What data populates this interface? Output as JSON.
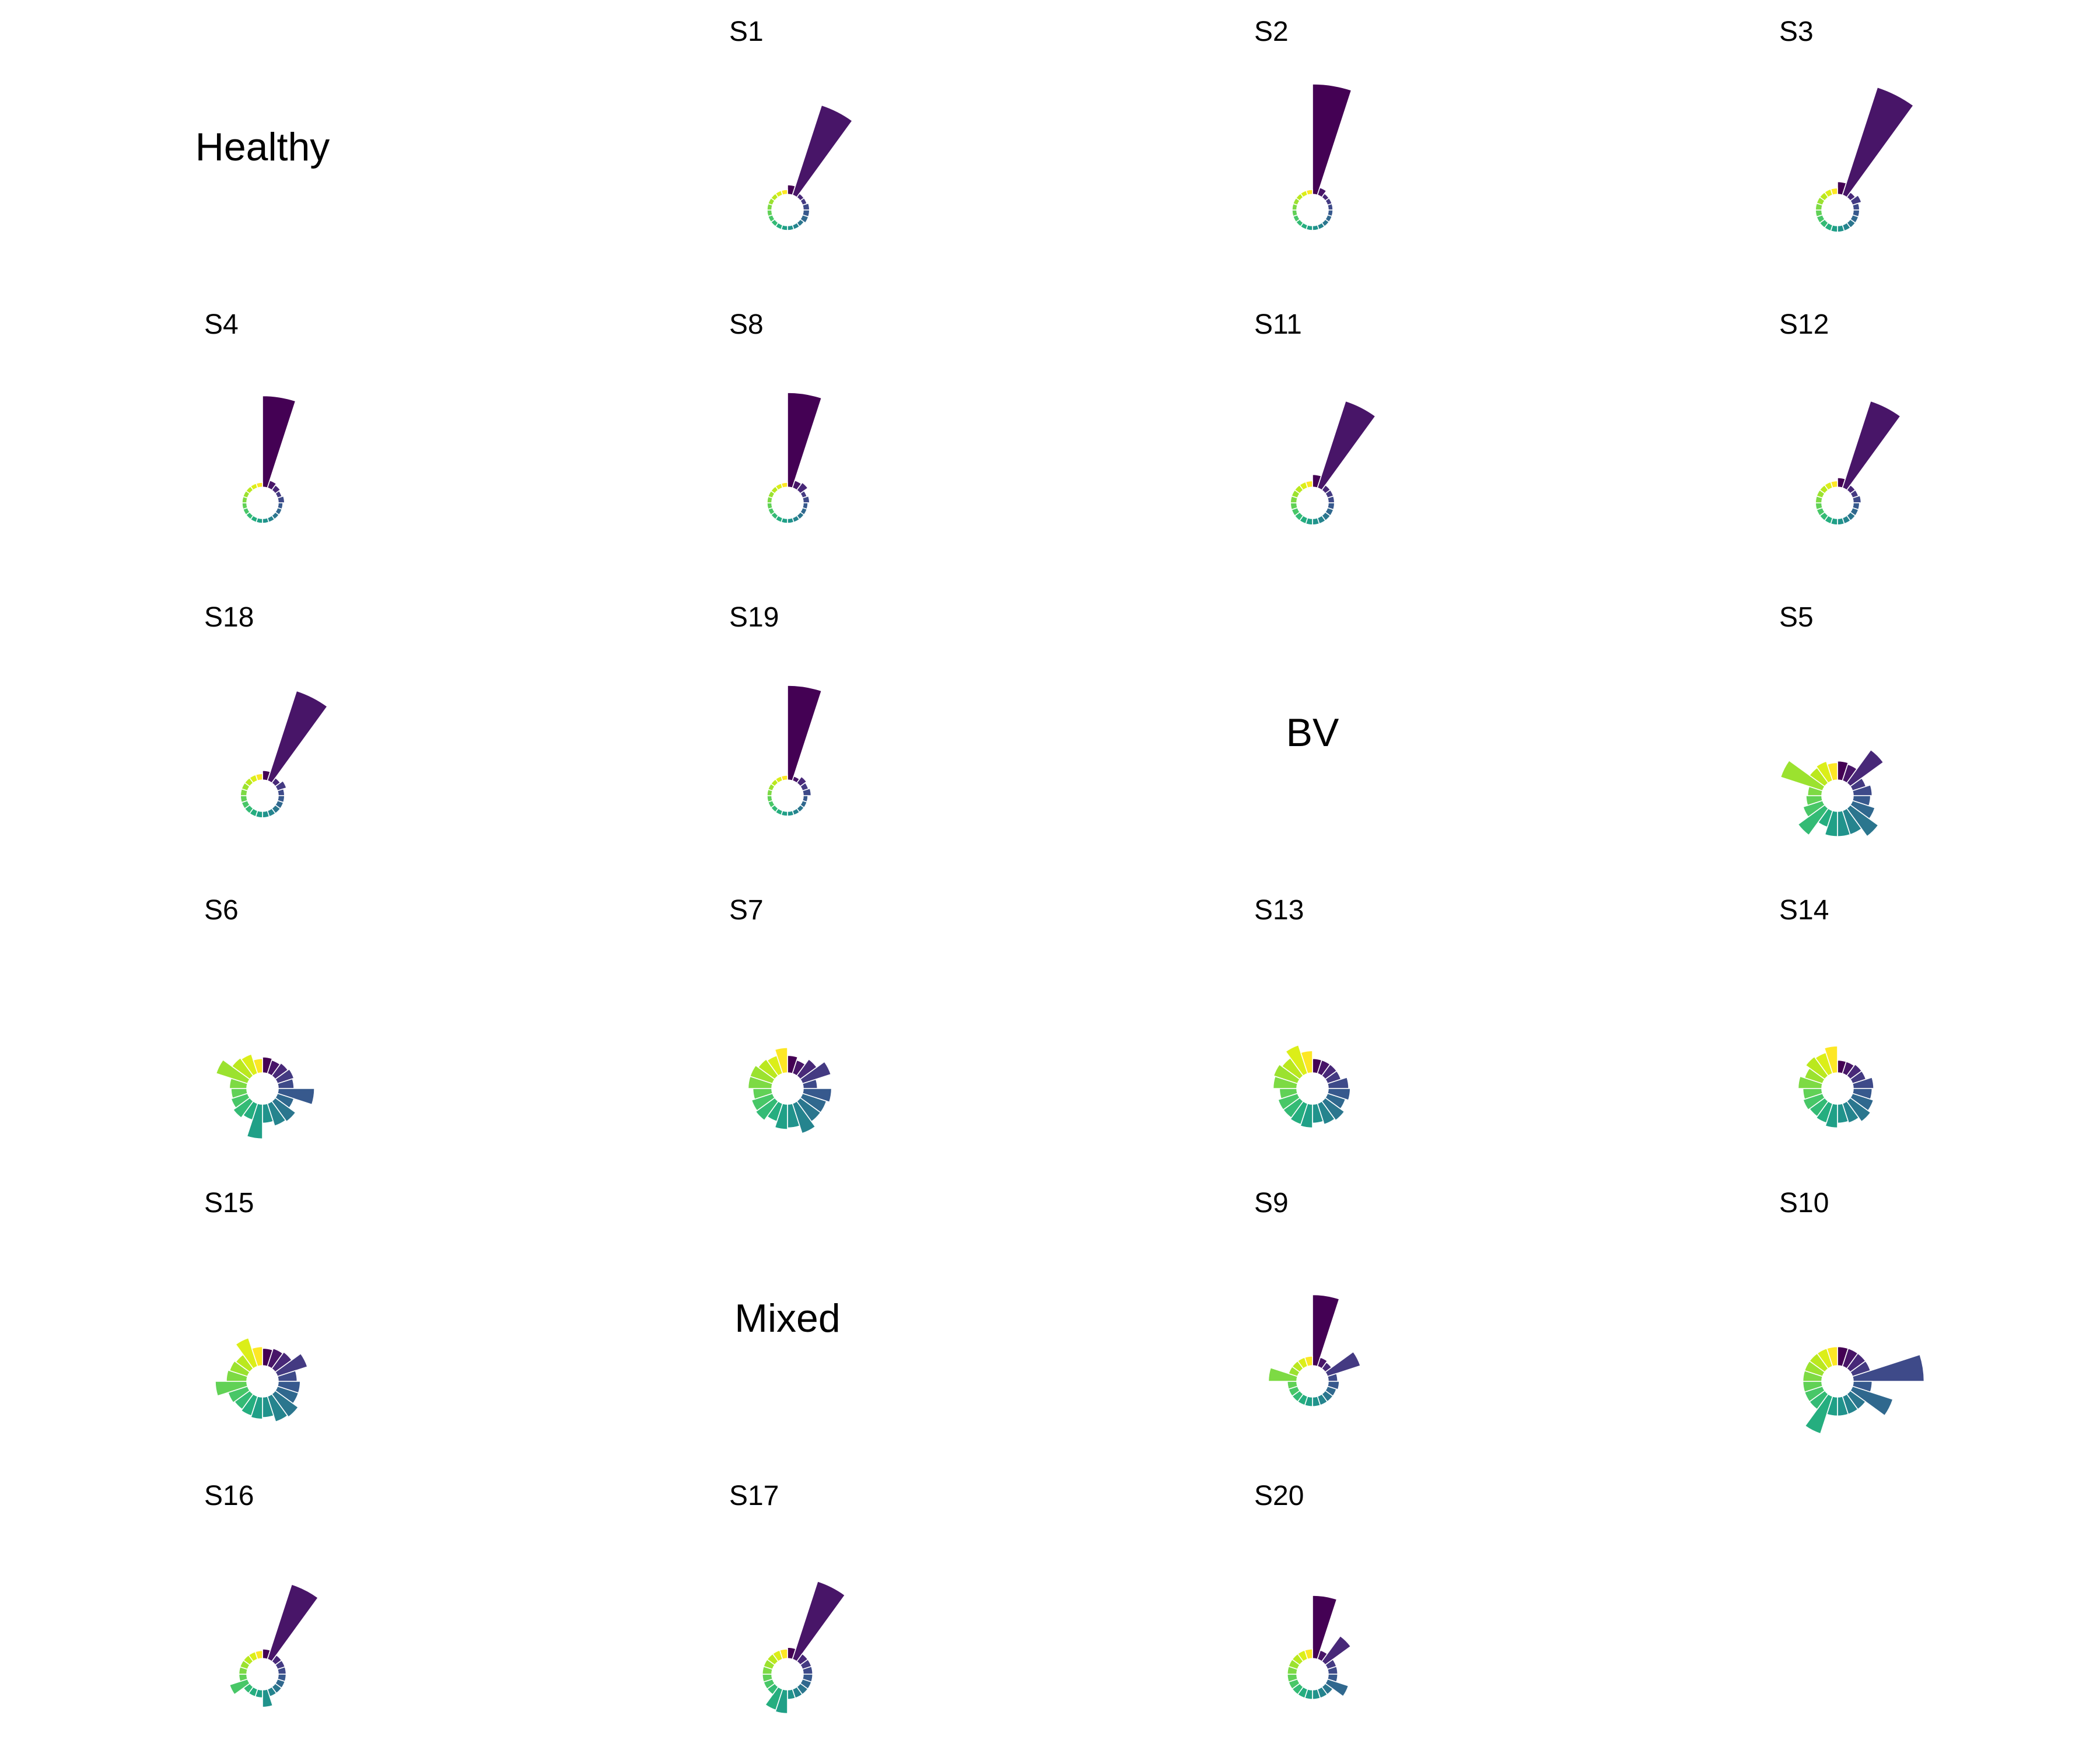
{
  "figure": {
    "colormap": "viridis",
    "groups": [
      {
        "label": "Healthy",
        "grid_row": 0,
        "grid_col": 0
      },
      {
        "label": "BV",
        "grid_row": 2,
        "grid_col": 2
      },
      {
        "label": "Mixed",
        "grid_row": 4,
        "grid_col": 1
      }
    ]
  },
  "chart_data": {
    "type": "bar",
    "projection": "polar",
    "n_categories": 20,
    "radial_scale": "relative, shared across panels",
    "panels": [
      {
        "title": "S1",
        "group": "Healthy",
        "grid_row": 0,
        "grid_col": 1,
        "values": [
          1.6,
          7.0,
          1.3,
          1.3,
          1.4,
          1.4,
          1.4,
          1.3,
          1.3,
          1.3,
          1.3,
          1.3,
          1.3,
          1.3,
          1.3,
          1.3,
          1.3,
          1.3,
          1.3,
          1.3
        ]
      },
      {
        "title": "S2",
        "group": "Healthy",
        "grid_row": 0,
        "grid_col": 2,
        "values": [
          8.0,
          1.5,
          1.3,
          1.3,
          1.3,
          1.3,
          1.3,
          1.3,
          1.3,
          1.3,
          1.3,
          1.3,
          1.3,
          1.3,
          1.3,
          1.3,
          1.3,
          1.3,
          1.3,
          1.3
        ]
      },
      {
        "title": "S3",
        "group": "Healthy",
        "grid_row": 0,
        "grid_col": 3,
        "values": [
          1.8,
          8.2,
          1.4,
          1.6,
          1.4,
          1.4,
          1.4,
          1.4,
          1.4,
          1.4,
          1.4,
          1.4,
          1.4,
          1.4,
          1.4,
          1.4,
          1.4,
          1.4,
          1.4,
          1.4
        ]
      },
      {
        "title": "S4",
        "group": "Healthy",
        "grid_row": 1,
        "grid_col": 0,
        "values": [
          6.8,
          1.5,
          1.4,
          1.3,
          1.4,
          1.3,
          1.3,
          1.3,
          1.3,
          1.3,
          1.3,
          1.3,
          1.3,
          1.3,
          1.3,
          1.3,
          1.3,
          1.3,
          1.3,
          1.3
        ]
      },
      {
        "title": "S8",
        "group": "Healthy",
        "grid_row": 1,
        "grid_col": 1,
        "values": [
          7.0,
          1.5,
          1.6,
          1.3,
          1.4,
          1.3,
          1.3,
          1.3,
          1.3,
          1.3,
          1.3,
          1.3,
          1.3,
          1.3,
          1.3,
          1.3,
          1.3,
          1.3,
          1.3,
          1.3
        ]
      },
      {
        "title": "S11",
        "group": "Healthy",
        "grid_row": 1,
        "grid_col": 2,
        "values": [
          1.8,
          6.8,
          1.4,
          1.4,
          1.4,
          1.4,
          1.4,
          1.4,
          1.4,
          1.4,
          1.4,
          1.4,
          1.4,
          1.4,
          1.4,
          1.4,
          1.4,
          1.4,
          1.4,
          1.4
        ]
      },
      {
        "title": "S12",
        "group": "Healthy",
        "grid_row": 1,
        "grid_col": 3,
        "values": [
          1.6,
          6.8,
          1.4,
          1.4,
          1.5,
          1.4,
          1.4,
          1.4,
          1.4,
          1.4,
          1.4,
          1.4,
          1.4,
          1.4,
          1.4,
          1.4,
          1.4,
          1.4,
          1.4,
          1.4
        ]
      },
      {
        "title": "S18",
        "group": "Healthy",
        "grid_row": 2,
        "grid_col": 0,
        "values": [
          1.6,
          7.0,
          1.4,
          1.6,
          1.4,
          1.4,
          1.4,
          1.4,
          1.4,
          1.4,
          1.4,
          1.4,
          1.4,
          1.4,
          1.4,
          1.4,
          1.4,
          1.4,
          1.4,
          1.4
        ]
      },
      {
        "title": "S19",
        "group": "Healthy",
        "grid_row": 2,
        "grid_col": 1,
        "values": [
          7.0,
          1.3,
          1.5,
          1.4,
          1.5,
          1.3,
          1.3,
          1.3,
          1.3,
          1.3,
          1.3,
          1.3,
          1.3,
          1.3,
          1.3,
          1.3,
          1.3,
          1.3,
          1.3,
          1.3
        ]
      },
      {
        "title": "S5",
        "group": "BV",
        "grid_row": 2,
        "grid_col": 3,
        "values": [
          2.2,
          2.1,
          3.6,
          1.9,
          2.2,
          2.1,
          2.5,
          3.2,
          2.6,
          2.6,
          2.6,
          2.1,
          3.1,
          2.3,
          2.0,
          1.9,
          3.8,
          2.2,
          2.3,
          2.1
        ]
      },
      {
        "title": "S6",
        "group": "BV",
        "grid_row": 3,
        "grid_col": 0,
        "values": [
          2.0,
          1.9,
          2.0,
          2.1,
          2.0,
          3.3,
          2.1,
          2.6,
          2.5,
          2.2,
          3.2,
          2.1,
          2.3,
          2.1,
          2.0,
          2.1,
          3.1,
          2.4,
          2.3,
          1.9
        ]
      },
      {
        "title": "S7",
        "group": "BV",
        "grid_row": 3,
        "grid_col": 1,
        "values": [
          2.1,
          1.9,
          2.3,
          2.9,
          1.9,
          2.8,
          2.6,
          2.6,
          3.0,
          2.5,
          2.6,
          2.2,
          2.5,
          2.4,
          2.2,
          2.5,
          2.5,
          2.3,
          2.2,
          2.6
        ]
      },
      {
        "title": "S13",
        "group": "BV",
        "grid_row": 3,
        "grid_col": 2,
        "values": [
          1.9,
          1.9,
          1.9,
          1.9,
          2.3,
          2.4,
          2.2,
          2.5,
          2.4,
          2.2,
          2.5,
          2.4,
          2.3,
          2.3,
          2.1,
          2.5,
          2.6,
          2.4,
          2.9,
          2.4
        ]
      },
      {
        "title": "S14",
        "group": "BV",
        "grid_row": 3,
        "grid_col": 3,
        "values": [
          1.8,
          1.8,
          1.9,
          1.9,
          2.3,
          2.2,
          2.4,
          2.6,
          2.3,
          2.2,
          2.5,
          2.3,
          2.2,
          2.3,
          2.2,
          2.5,
          2.2,
          2.5,
          2.4,
          2.7
        ]
      },
      {
        "title": "S15",
        "group": "BV",
        "grid_row": 4,
        "grid_col": 0,
        "values": [
          2.1,
          2.2,
          2.3,
          3.0,
          2.2,
          2.4,
          2.4,
          2.8,
          2.7,
          2.3,
          2.4,
          2.3,
          2.2,
          2.3,
          3.0,
          2.3,
          2.2,
          2.1,
          2.9,
          2.2
        ]
      },
      {
        "title": "S9",
        "group": "Mixed",
        "grid_row": 4,
        "grid_col": 2,
        "values": [
          5.5,
          1.6,
          1.5,
          3.2,
          1.6,
          1.7,
          1.6,
          1.6,
          1.6,
          1.6,
          1.6,
          1.6,
          1.6,
          1.6,
          1.6,
          2.8,
          1.6,
          1.6,
          1.6,
          1.6
        ]
      },
      {
        "title": "S10",
        "group": "Mixed",
        "grid_row": 4,
        "grid_col": 3,
        "values": [
          2.2,
          2.2,
          2.2,
          2.2,
          5.5,
          2.2,
          3.7,
          2.2,
          2.2,
          2.2,
          2.2,
          3.5,
          2.2,
          2.2,
          2.2,
          2.2,
          2.2,
          2.2,
          2.2,
          2.2
        ]
      },
      {
        "title": "S16",
        "group": "Mixed",
        "grid_row": 5,
        "grid_col": 0,
        "values": [
          1.6,
          6.0,
          1.5,
          1.5,
          1.5,
          1.5,
          1.5,
          1.5,
          1.5,
          2.1,
          1.5,
          1.5,
          1.5,
          2.2,
          1.5,
          1.5,
          1.5,
          1.5,
          1.5,
          1.5
        ]
      },
      {
        "title": "S17",
        "group": "Mixed",
        "grid_row": 5,
        "grid_col": 1,
        "values": [
          1.7,
          6.2,
          1.6,
          1.6,
          1.6,
          1.6,
          1.6,
          1.6,
          1.6,
          1.6,
          2.5,
          2.4,
          1.6,
          1.6,
          1.6,
          1.6,
          1.6,
          1.6,
          1.6,
          1.6
        ]
      },
      {
        "title": "S20",
        "group": "Mixed",
        "grid_row": 5,
        "grid_col": 2,
        "values": [
          5.0,
          1.6,
          3.0,
          1.6,
          1.6,
          1.6,
          2.4,
          1.6,
          1.6,
          1.6,
          1.6,
          1.6,
          1.6,
          1.6,
          1.6,
          1.6,
          1.6,
          1.6,
          1.6,
          1.6
        ]
      }
    ]
  }
}
